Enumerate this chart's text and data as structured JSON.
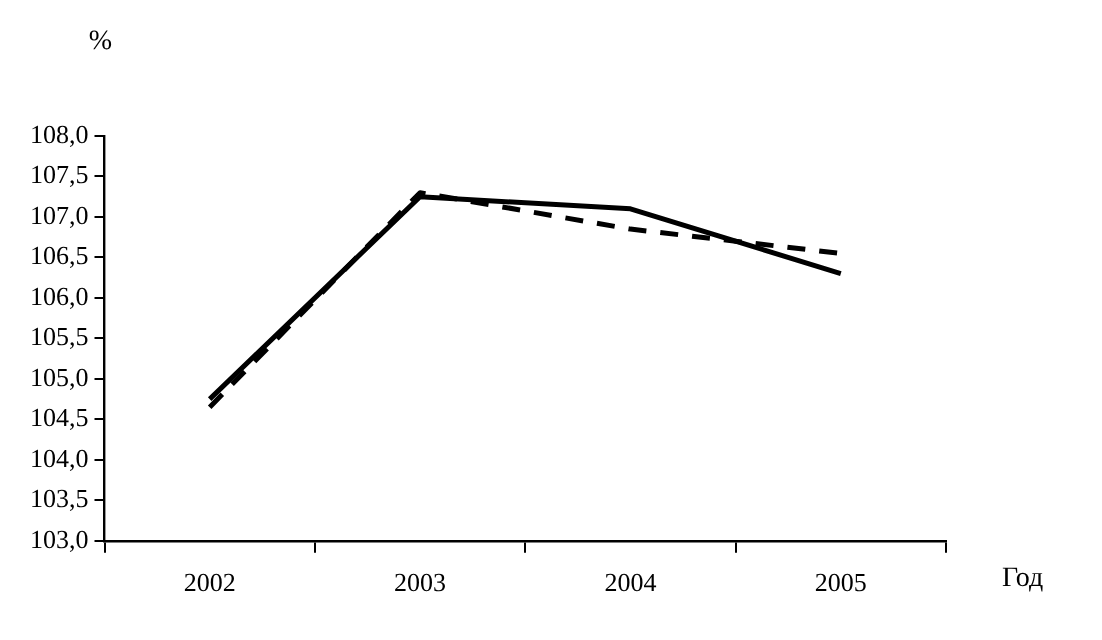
{
  "chart_data": {
    "type": "line",
    "ylabel": "%",
    "xlabel": "Год",
    "categories": [
      "2002",
      "2003",
      "2004",
      "2005"
    ],
    "series": [
      {
        "color": "#000000",
        "line_style": "solid",
        "values": [
          104.75,
          107.25,
          107.1,
          106.3
        ]
      },
      {
        "color": "#000000",
        "line_style": "dashed",
        "values": [
          104.65,
          107.3,
          106.85,
          106.55
        ]
      }
    ],
    "ylim": [
      103,
      108
    ],
    "yticks": [
      {
        "value": 103,
        "label": "103,0"
      },
      {
        "value": 103.5,
        "label": "103,5"
      },
      {
        "value": 104,
        "label": "104,0"
      },
      {
        "value": 104.5,
        "label": "104,5"
      },
      {
        "value": 105,
        "label": "105,0"
      },
      {
        "value": 105.5,
        "label": "105,5"
      },
      {
        "value": 106,
        "label": "106,0"
      },
      {
        "value": 106.5,
        "label": "106,5"
      },
      {
        "value": 107,
        "label": "107,0"
      },
      {
        "value": 107.5,
        "label": "107,5"
      },
      {
        "value": 108,
        "label": "108,0"
      }
    ],
    "grid": false,
    "legend": false,
    "marker": "none"
  }
}
